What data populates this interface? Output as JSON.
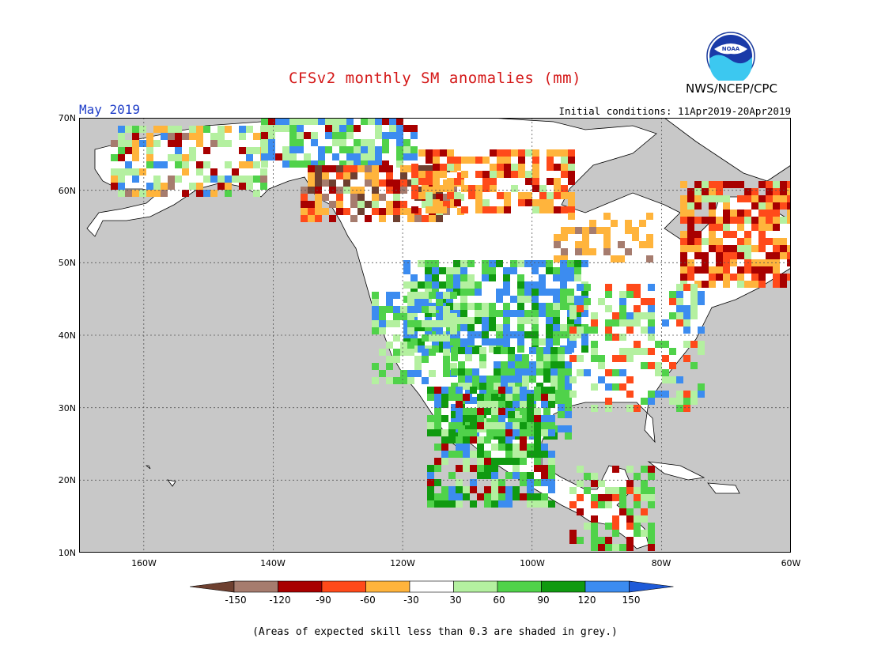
{
  "title": "CFSv2 monthly SM anomalies (mm)",
  "period": "May 2019",
  "initial_conditions": "Initial conditions: 11Apr2019-20Apr2019",
  "agency": "NWS/NCEP/CPC",
  "logo_text": "NOAA",
  "footnote": "(Areas of expected skill less than 0.3 are shaded in grey.)",
  "map": {
    "lon_range": [
      -170,
      -60
    ],
    "lat_range": [
      10,
      70
    ],
    "lat_labels": [
      "70N",
      "60N",
      "50N",
      "40N",
      "30N",
      "20N",
      "10N"
    ],
    "lon_labels": [
      "160W",
      "140W",
      "120W",
      "100W",
      "80W",
      "60W"
    ],
    "background_color": "#c8c8c8",
    "land_color": "#ffffff"
  },
  "legend": {
    "tick_labels": [
      "-150",
      "-120",
      "-90",
      "-60",
      "-30",
      "30",
      "60",
      "90",
      "120",
      "150"
    ],
    "colors": [
      "#6e4030",
      "#a67c6e",
      "#a80000",
      "#ff4a1a",
      "#ffb43c",
      "#ffffff",
      "#b4f0a0",
      "#50d24a",
      "#109a10",
      "#3c8cf0",
      "#1e5ad8"
    ]
  }
}
